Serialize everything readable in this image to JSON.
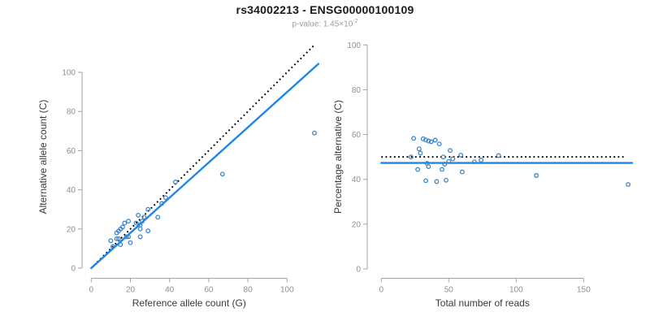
{
  "page": {
    "title": "rs34002213 - ENSG00000100109",
    "subtitle_text": "p-value: 1.45×10",
    "subtitle_exponent": "-2"
  },
  "colors": {
    "title": "#1a1a1a",
    "subtitle": "#9c9c9c",
    "point": "#3d86c9",
    "fit_line": "#1e87e5",
    "identity_line": "#000000",
    "axis": "#a3a3a3",
    "tick_label": "#8f8f8f",
    "axis_title": "#3a3a3a"
  },
  "chart_data": [
    {
      "id": "allele-counts",
      "type": "scatter",
      "title": "rs34002213 - ENSG00000100109",
      "xlabel": "Reference allele count (G)",
      "ylabel": "Alternative allele count (C)",
      "xticks": [
        0,
        20,
        40,
        60,
        80,
        100
      ],
      "yticks": [
        0,
        20,
        40,
        60,
        80,
        100
      ],
      "xlim": [
        0,
        117
      ],
      "ylim": [
        0,
        117
      ],
      "grid": false,
      "legend": "none",
      "points": [
        [
          10,
          14
        ],
        [
          13,
          18
        ],
        [
          14,
          19
        ],
        [
          15,
          20
        ],
        [
          16,
          21
        ],
        [
          17,
          23
        ],
        [
          19,
          24
        ],
        [
          13,
          15
        ],
        [
          24,
          27
        ],
        [
          14,
          15
        ],
        [
          11,
          11
        ],
        [
          23,
          23
        ],
        [
          29,
          30
        ],
        [
          43,
          44
        ],
        [
          18,
          16
        ],
        [
          26,
          24
        ],
        [
          27,
          26
        ],
        [
          36,
          33
        ],
        [
          38,
          36
        ],
        [
          19,
          16
        ],
        [
          15,
          12
        ],
        [
          25,
          20
        ],
        [
          25,
          22
        ],
        [
          34,
          26
        ],
        [
          20,
          13
        ],
        [
          25,
          16
        ],
        [
          29,
          19
        ],
        [
          67,
          48
        ],
        [
          114,
          69
        ]
      ],
      "lines": [
        {
          "name": "identity y=x",
          "style": "dotted",
          "color": "#000000",
          "x1": 0,
          "y1": 0,
          "x2": 114,
          "y2": 114
        },
        {
          "name": "fit slope 0.90",
          "style": "solid",
          "color": "#1e87e5",
          "x1": 0,
          "y1": 0,
          "x2": 116,
          "y2": 104.3
        }
      ]
    },
    {
      "id": "percentage-alternative",
      "type": "scatter",
      "xlabel": "Total number of reads",
      "ylabel": "Percentage alternative (C)",
      "xticks": [
        0,
        50,
        100,
        150
      ],
      "yticks": [
        0,
        20,
        40,
        60,
        80,
        100
      ],
      "xlim": [
        0,
        190
      ],
      "ylim": [
        0,
        100
      ],
      "grid": false,
      "legend": "none",
      "points": [
        [
          24,
          58.3
        ],
        [
          31,
          58.1
        ],
        [
          33,
          57.6
        ],
        [
          35,
          57.1
        ],
        [
          37,
          56.8
        ],
        [
          40,
          57.5
        ],
        [
          43,
          55.8
        ],
        [
          28,
          53.6
        ],
        [
          51,
          52.9
        ],
        [
          29,
          51.7
        ],
        [
          22,
          50.0
        ],
        [
          46,
          50.0
        ],
        [
          59,
          50.8
        ],
        [
          87,
          50.6
        ],
        [
          34,
          47.1
        ],
        [
          50,
          48.0
        ],
        [
          53,
          49.1
        ],
        [
          69,
          47.8
        ],
        [
          74,
          48.6
        ],
        [
          35,
          45.7
        ],
        [
          27,
          44.4
        ],
        [
          45,
          44.4
        ],
        [
          47,
          46.8
        ],
        [
          60,
          43.3
        ],
        [
          33,
          39.4
        ],
        [
          41,
          39.0
        ],
        [
          48,
          39.6
        ],
        [
          115,
          41.7
        ],
        [
          183,
          37.7
        ]
      ],
      "lines": [
        {
          "name": "expected 50%",
          "style": "dotted",
          "color": "#000000",
          "x1": 0,
          "y1": 50,
          "x2": 180,
          "y2": 50
        },
        {
          "name": "mean 47.3%",
          "style": "solid",
          "color": "#1e87e5",
          "x1": 0,
          "y1": 47.3,
          "x2": 186,
          "y2": 47.3
        }
      ]
    }
  ]
}
